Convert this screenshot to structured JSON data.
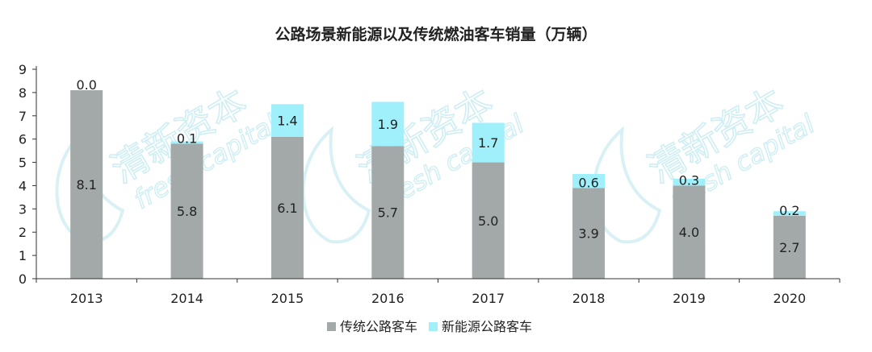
{
  "chart_data": {
    "type": "bar",
    "stacked": true,
    "title": "公路场景新能源以及传统燃油客车销量（万辆）",
    "categories": [
      "2013",
      "2014",
      "2015",
      "2016",
      "2017",
      "2018",
      "2019",
      "2020"
    ],
    "series": [
      {
        "name": "传统公路客车",
        "values": [
          8.1,
          5.8,
          6.1,
          5.7,
          5.0,
          3.9,
          4.0,
          2.7
        ],
        "color": "#a3a9a8"
      },
      {
        "name": "新能源公路客车",
        "values": [
          0.0,
          0.1,
          1.4,
          1.9,
          1.7,
          0.6,
          0.3,
          0.2
        ],
        "color": "#9ff0fb"
      }
    ],
    "data_labels": {
      "传统公路客车": [
        "8.1",
        "5.8",
        "6.1",
        "5.7",
        "5.0",
        "3.9",
        "4.0",
        "2.7"
      ],
      "新能源公路客车": [
        "0.0",
        "0.1",
        "1.4",
        "1.9",
        "1.7",
        "0.6",
        "0.3",
        "0.2"
      ]
    },
    "ylim": [
      0,
      9
    ],
    "yticks": [
      "0",
      "1",
      "2",
      "3",
      "4",
      "5",
      "6",
      "7",
      "8",
      "9"
    ],
    "grid": false,
    "legend_position": "bottom-center"
  },
  "watermark": {
    "brand_cn": "清新资本",
    "brand_en": "fresh capital",
    "color": "#cfeef3"
  }
}
